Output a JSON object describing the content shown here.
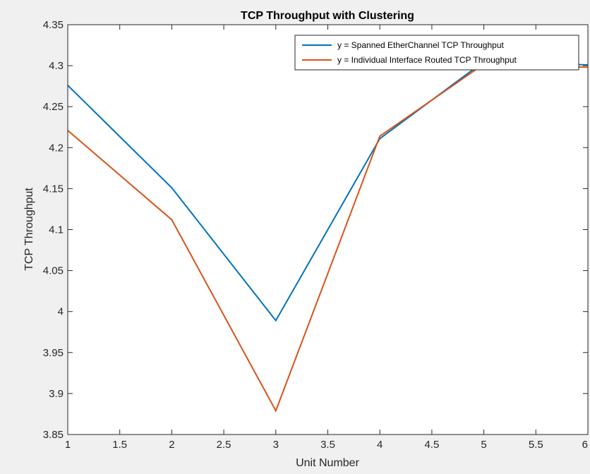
{
  "chart_data": {
    "type": "line",
    "title": "TCP Throughput with Clustering",
    "xlabel": "Unit Number",
    "ylabel": "TCP Throughput",
    "xlim": [
      1,
      6
    ],
    "ylim": [
      3.85,
      4.35
    ],
    "xticks": [
      "1",
      "1.5",
      "2",
      "2.5",
      "3",
      "3.5",
      "4",
      "4.5",
      "5",
      "5.5",
      "6"
    ],
    "yticks": [
      "3.85",
      "3.9",
      "3.95",
      "4",
      "4.05",
      "4.1",
      "4.15",
      "4.2",
      "4.25",
      "4.3",
      "4.35"
    ],
    "grid": false,
    "legend_position": "top-right",
    "x": [
      1,
      2,
      3,
      4,
      5,
      6
    ],
    "series": [
      {
        "name": "y = Spanned EtherChannel TCP Throughput",
        "color": "#0072bd",
        "values": [
          4.276,
          4.151,
          3.989,
          4.211,
          4.305,
          4.301
        ]
      },
      {
        "name": "y = Individual Interface Routed TCP Throughput",
        "color": "#d95319",
        "values": [
          4.221,
          4.112,
          3.879,
          4.214,
          4.302,
          4.298
        ]
      }
    ]
  }
}
